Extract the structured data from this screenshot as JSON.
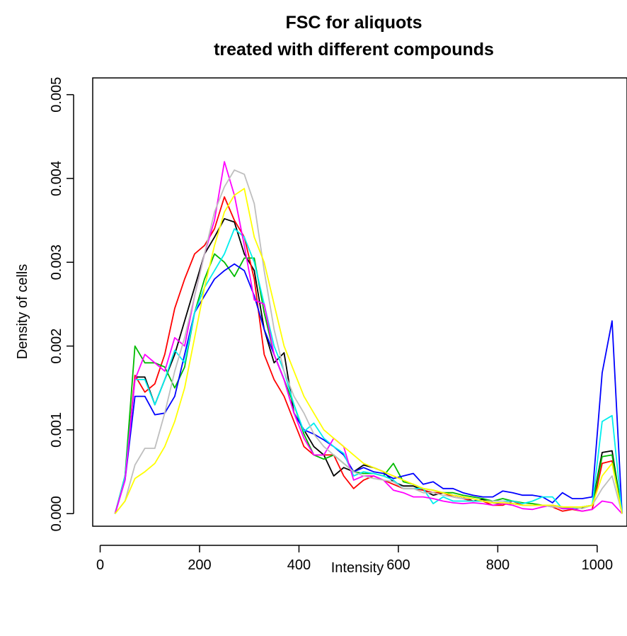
{
  "chart_data": {
    "type": "line",
    "title": "FSC for aliquots",
    "subtitle": "treated with different compounds",
    "xlabel": "Intensity",
    "ylabel": "Density of cells",
    "xlim": [
      -15,
      1060
    ],
    "ylim": [
      -0.00015,
      0.0052
    ],
    "xticks": [
      0,
      200,
      400,
      600,
      800,
      1000
    ],
    "xtick_labels": [
      "0",
      "200",
      "400",
      "600",
      "800",
      "1000"
    ],
    "yticks": [
      0.0,
      0.001,
      0.002,
      0.003,
      0.004,
      0.005
    ],
    "ytick_labels": [
      "0.000",
      "0.001",
      "0.002",
      "0.003",
      "0.004",
      "0.005"
    ],
    "grid": false,
    "legend": "none",
    "x": [
      30,
      50,
      70,
      90,
      110,
      130,
      150,
      170,
      190,
      210,
      230,
      250,
      270,
      290,
      310,
      330,
      350,
      370,
      390,
      410,
      430,
      450,
      470,
      490,
      510,
      530,
      550,
      570,
      590,
      610,
      630,
      650,
      670,
      690,
      710,
      730,
      750,
      770,
      790,
      810,
      830,
      850,
      870,
      890,
      910,
      930,
      950,
      970,
      990,
      1010,
      1030,
      1050
    ],
    "series": [
      {
        "color": "#000000",
        "values": [
          0.0,
          0.00042,
          0.00163,
          0.00163,
          0.0013,
          0.0016,
          0.0019,
          0.0023,
          0.0027,
          0.0031,
          0.0033,
          0.00352,
          0.00348,
          0.0031,
          0.0029,
          0.0022,
          0.0018,
          0.00192,
          0.0012,
          0.001,
          0.0008,
          0.0007,
          0.00045,
          0.00055,
          0.0005,
          0.00058,
          0.00055,
          0.0005,
          0.00038,
          0.00033,
          0.00033,
          0.00028,
          0.00022,
          0.00025,
          0.00022,
          0.0002,
          0.00015,
          0.00017,
          0.00013,
          0.00012,
          0.00012,
          0.0001,
          0.0001,
          0.0001,
          0.0001,
          6e-05,
          6e-05,
          7e-05,
          0.0001,
          0.00073,
          0.00075,
          0.0
        ]
      },
      {
        "color": "#ff0000",
        "values": [
          0.0,
          0.00045,
          0.00165,
          0.00145,
          0.00155,
          0.0019,
          0.00245,
          0.0028,
          0.0031,
          0.0032,
          0.0034,
          0.00378,
          0.0035,
          0.0033,
          0.0028,
          0.0019,
          0.0016,
          0.0014,
          0.0011,
          0.0008,
          0.0007,
          0.0007,
          0.0007,
          0.00045,
          0.0003,
          0.0004,
          0.00045,
          0.0004,
          0.00035,
          0.0003,
          0.0003,
          0.00028,
          0.00025,
          0.00025,
          0.0002,
          0.00018,
          0.00015,
          0.00015,
          0.0001,
          0.0001,
          0.00015,
          0.0001,
          0.0001,
          0.0001,
          8e-05,
          3e-05,
          5e-05,
          3e-05,
          5e-05,
          0.0006,
          0.00063,
          0.0
        ]
      },
      {
        "color": "#00bb00",
        "values": [
          0.0,
          0.00045,
          0.002,
          0.0018,
          0.0018,
          0.00175,
          0.0015,
          0.00175,
          0.0024,
          0.0028,
          0.0031,
          0.003,
          0.00283,
          0.00305,
          0.00305,
          0.0024,
          0.0019,
          0.0016,
          0.0013,
          0.00095,
          0.0007,
          0.00065,
          0.0007,
          0.0006,
          0.0005,
          0.00048,
          0.00048,
          0.00045,
          0.0006,
          0.00038,
          0.00035,
          0.0003,
          0.00028,
          0.00025,
          0.00025,
          0.00022,
          0.0002,
          0.00018,
          0.00015,
          0.00018,
          0.00015,
          0.00013,
          0.00012,
          0.0001,
          0.0001,
          8e-05,
          6e-05,
          8e-05,
          0.0001,
          0.00068,
          0.0007,
          0.0
        ]
      },
      {
        "color": "#0000ff",
        "values": [
          0.0,
          0.0004,
          0.0014,
          0.0014,
          0.00118,
          0.0012,
          0.0014,
          0.0019,
          0.0024,
          0.0026,
          0.0028,
          0.0029,
          0.00298,
          0.0029,
          0.0026,
          0.0022,
          0.0019,
          0.0016,
          0.0012,
          0.001,
          0.00095,
          0.00088,
          0.0008,
          0.0007,
          0.0005,
          0.00055,
          0.0005,
          0.00048,
          0.00042,
          0.00045,
          0.00048,
          0.00035,
          0.00038,
          0.0003,
          0.0003,
          0.00025,
          0.00022,
          0.0002,
          0.0002,
          0.00027,
          0.00025,
          0.00022,
          0.00022,
          0.0002,
          0.00013,
          0.00025,
          0.00018,
          0.00018,
          0.0002,
          0.00168,
          0.0023,
          0.0
        ]
      },
      {
        "color": "#00eeee",
        "values": [
          0.0,
          0.00045,
          0.0016,
          0.0016,
          0.0013,
          0.0016,
          0.00195,
          0.0018,
          0.0024,
          0.0027,
          0.0029,
          0.0031,
          0.0034,
          0.0033,
          0.003,
          0.0025,
          0.002,
          0.0017,
          0.0013,
          0.00098,
          0.00108,
          0.0009,
          0.0008,
          0.00072,
          0.00045,
          0.0005,
          0.00048,
          0.00045,
          0.0004,
          0.0003,
          0.0003,
          0.0003,
          0.00012,
          0.0002,
          0.00015,
          0.00015,
          0.00015,
          0.00015,
          0.00015,
          0.00015,
          0.00015,
          0.00012,
          0.00015,
          0.0002,
          0.0002,
          6e-05,
          6e-05,
          8e-05,
          0.0001,
          0.0011,
          0.00117,
          0.0
        ]
      },
      {
        "color": "#ff00ff",
        "values": [
          0.0,
          0.0004,
          0.0016,
          0.0019,
          0.0018,
          0.0017,
          0.0021,
          0.002,
          0.0026,
          0.0031,
          0.0035,
          0.0042,
          0.0038,
          0.0032,
          0.00255,
          0.0025,
          0.0019,
          0.0016,
          0.0012,
          0.0009,
          0.0007,
          0.0007,
          0.0009,
          0.0008,
          0.0004,
          0.00045,
          0.00045,
          0.0004,
          0.00028,
          0.00025,
          0.0002,
          0.0002,
          0.00018,
          0.00015,
          0.00013,
          0.00012,
          0.00013,
          0.00012,
          0.0001,
          0.00012,
          0.0001,
          6e-05,
          5e-05,
          8e-05,
          0.0001,
          6e-05,
          6e-05,
          3e-05,
          5e-05,
          0.00015,
          0.00013,
          0.0
        ]
      },
      {
        "color": "#bebebe",
        "values": [
          0.0,
          0.00015,
          0.00058,
          0.00078,
          0.00078,
          0.0012,
          0.0017,
          0.0021,
          0.0026,
          0.0031,
          0.0036,
          0.0039,
          0.0041,
          0.00405,
          0.0037,
          0.0029,
          0.0022,
          0.0017,
          0.0014,
          0.0012,
          0.00095,
          0.0008,
          0.0007,
          0.0006,
          0.0005,
          0.00045,
          0.00042,
          0.0004,
          0.00038,
          0.0003,
          0.0003,
          0.00025,
          0.00025,
          0.00022,
          0.0002,
          0.00018,
          0.00018,
          0.00015,
          0.00015,
          0.00015,
          0.00012,
          0.0001,
          0.0001,
          0.0001,
          8e-05,
          8e-05,
          8e-05,
          6e-05,
          0.0001,
          0.0003,
          0.00045,
          0.0
        ]
      },
      {
        "color": "#ffff00",
        "values": [
          0.0,
          0.00015,
          0.00042,
          0.0005,
          0.0006,
          0.0008,
          0.0011,
          0.0015,
          0.0021,
          0.0027,
          0.0032,
          0.0036,
          0.0038,
          0.00388,
          0.0033,
          0.003,
          0.0025,
          0.002,
          0.0017,
          0.0014,
          0.0012,
          0.001,
          0.0009,
          0.0008,
          0.0007,
          0.0006,
          0.00055,
          0.0005,
          0.00045,
          0.0004,
          0.00035,
          0.0003,
          0.00028,
          0.00025,
          0.00022,
          0.0002,
          0.00018,
          0.00015,
          0.00013,
          0.00013,
          0.00012,
          0.0001,
          0.0001,
          0.0001,
          0.0001,
          8e-05,
          8e-05,
          8e-05,
          0.0001,
          0.00045,
          0.0006,
          0.0
        ]
      }
    ]
  }
}
